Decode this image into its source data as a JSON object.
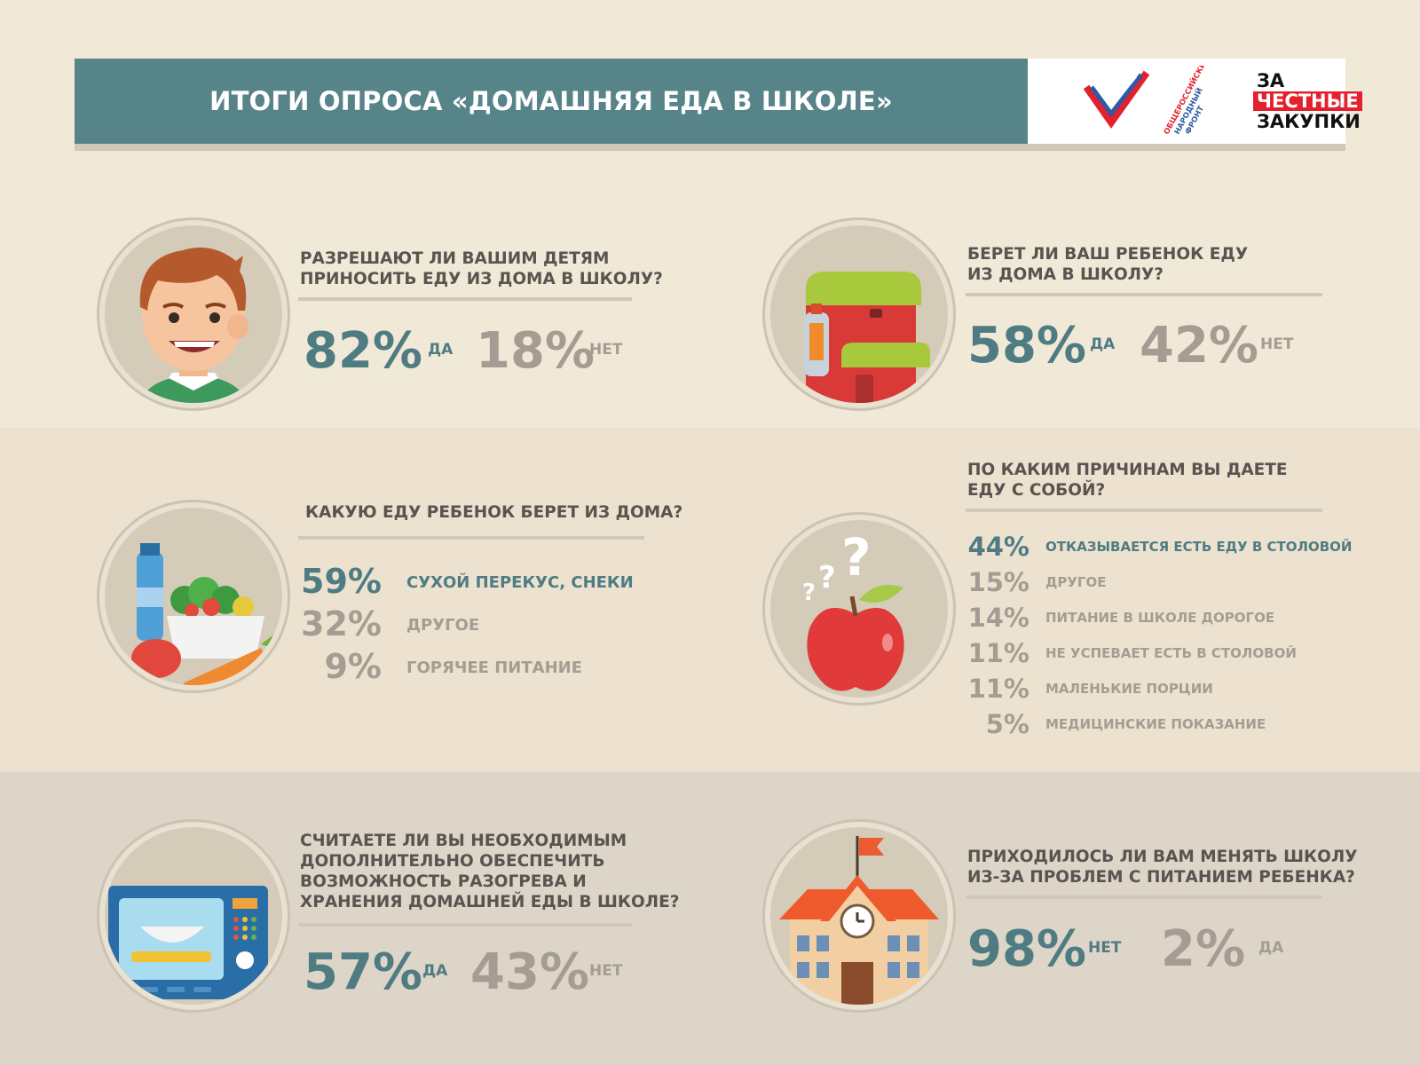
{
  "header": {
    "title": "ИТОГИ ОПРОСА «ДОМАШНЯЯ ЕДА В ШКОЛЕ»",
    "logo": {
      "line1": "ЗА",
      "line2": "ЧЕСТНЫЕ",
      "line3": "ЗАКУПКИ",
      "org_vertical": "ОБЩЕРОССИЙСКИЙ НАРОДНЫЙ ФРОНТ"
    }
  },
  "colors": {
    "teal": "#4f7c82",
    "grey": "#a59d93",
    "header_bg": "#578489",
    "logo_red": "#e4202c"
  },
  "q1": {
    "icon": "boy-face-icon",
    "question_l1": "РАЗРЕШАЮТ ЛИ ВАШИМ ДЕТЯМ",
    "question_l2": "ПРИНОСИТЬ ЕДУ ИЗ ДОМА В ШКОЛУ?",
    "yes_pct": "82%",
    "yes_label": "ДА",
    "no_pct": "18%",
    "no_label": "НЕТ"
  },
  "q2": {
    "icon": "backpack-icon",
    "question_l1": "БЕРЕТ ЛИ ВАШ РЕБЕНОК ЕДУ",
    "question_l2": "ИЗ ДОМА В ШКОЛУ?",
    "yes_pct": "58%",
    "yes_label": "ДА",
    "no_pct": "42%",
    "no_label": "НЕТ"
  },
  "q3": {
    "icon": "food-bowl-icon",
    "question": "КАКУЮ ЕДУ РЕБЕНОК БЕРЕТ ИЗ ДОМА?",
    "items": [
      {
        "pct": "59%",
        "label": "СУХОЙ ПЕРЕКУС, СНЕКИ"
      },
      {
        "pct": "32%",
        "label": "ДРУГОЕ"
      },
      {
        "pct": "9%",
        "label": "ГОРЯЧЕЕ ПИТАНИЕ"
      }
    ]
  },
  "q4": {
    "icon": "apple-question-icon",
    "question_l1": "ПО КАКИМ ПРИЧИНАМ ВЫ ДАЕТЕ",
    "question_l2": "ЕДУ С СОБОЙ?",
    "items": [
      {
        "pct": "44%",
        "label": "ОТКАЗЫВАЕТСЯ ЕСТЬ ЕДУ В СТОЛОВОЙ"
      },
      {
        "pct": "15%",
        "label": "ДРУГОЕ"
      },
      {
        "pct": "14%",
        "label": "ПИТАНИЕ В ШКОЛЕ ДОРОГОЕ"
      },
      {
        "pct": "11%",
        "label": "НЕ УСПЕВАЕТ ЕСТЬ В СТОЛОВОЙ"
      },
      {
        "pct": "11%",
        "label": "МАЛЕНЬКИЕ ПОРЦИИ"
      },
      {
        "pct": "5%",
        "label": "МЕДИЦИНСКИЕ ПОКАЗАНИЕ"
      }
    ]
  },
  "q5": {
    "icon": "microwave-icon",
    "question_l1": "СЧИТАЕТЕ ЛИ ВЫ НЕОБХОДИМЫМ",
    "question_l2": "ДОПОЛНИТЕЛЬНО ОБЕСПЕЧИТЬ",
    "question_l3": "ВОЗМОЖНОСТЬ РАЗОГРЕВА И",
    "question_l4": "ХРАНЕНИЯ ДОМАШНЕЙ ЕДЫ В ШКОЛЕ?",
    "yes_pct": "57%",
    "yes_label": "ДА",
    "no_pct": "43%",
    "no_label": "НЕТ"
  },
  "q6": {
    "icon": "school-building-icon",
    "question_l1": "ПРИХОДИЛОСЬ ЛИ ВАМ МЕНЯТЬ ШКОЛУ",
    "question_l2": "ИЗ-ЗА ПРОБЛЕМ С ПИТАНИЕМ РЕБЕНКА?",
    "no_pct": "98%",
    "no_label": "НЕТ",
    "yes_pct": "2%",
    "yes_label": "ДА"
  }
}
